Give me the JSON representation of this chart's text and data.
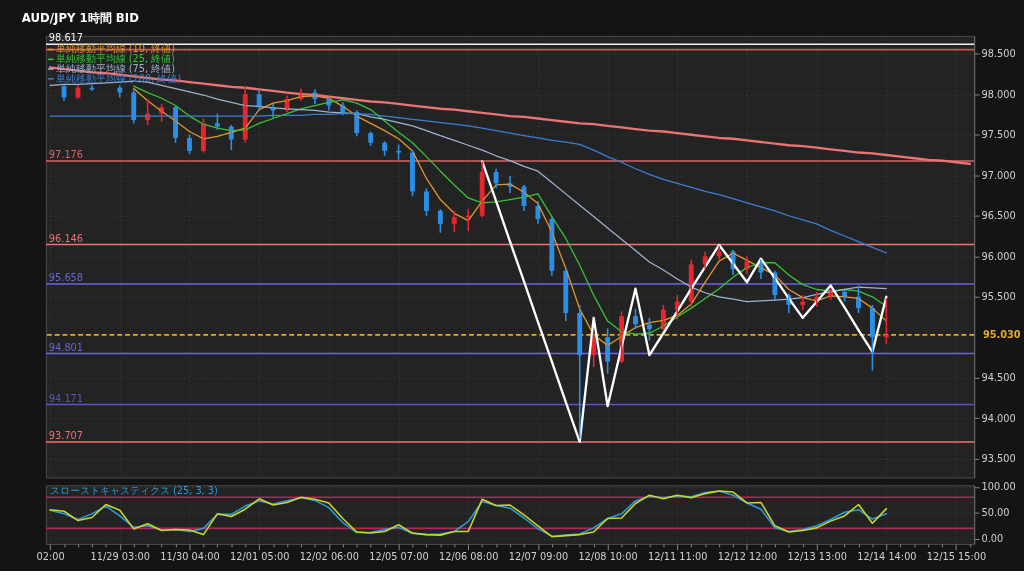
{
  "chart_data": [
    {
      "type": "candlestick",
      "title": "AUD/JPY 1時間 BID",
      "categories": [
        null,
        null,
        null,
        null,
        null,
        null,
        null,
        null,
        null,
        null,
        null,
        null,
        null,
        null,
        null,
        null,
        null,
        null,
        null,
        null,
        null,
        null,
        null,
        null,
        null,
        null,
        null,
        null,
        null,
        null,
        null,
        null,
        null,
        null,
        null,
        null,
        null,
        null,
        null,
        null,
        null,
        null,
        null,
        null,
        null,
        null,
        null,
        null,
        null,
        null,
        null,
        null,
        null,
        null,
        null,
        null,
        null,
        null,
        null,
        null,
        null,
        null,
        null,
        null,
        null,
        null,
        null
      ],
      "ohlc": [
        null,
        [
          98.1,
          98.11,
          97.92,
          97.96
        ],
        [
          97.96,
          98.11,
          97.94,
          98.08
        ],
        [
          98.08,
          98.11,
          98.04,
          98.06
        ],
        null,
        [
          98.08,
          98.11,
          97.96,
          98.02
        ],
        [
          98.02,
          98.06,
          97.64,
          97.68
        ],
        [
          97.68,
          97.94,
          97.62,
          97.76
        ],
        [
          97.76,
          97.88,
          97.66,
          97.84
        ],
        [
          97.84,
          97.86,
          97.4,
          97.46
        ],
        [
          97.46,
          97.5,
          97.26,
          97.3
        ],
        [
          97.3,
          97.7,
          97.28,
          97.64
        ],
        [
          97.64,
          97.76,
          97.56,
          97.6
        ],
        [
          97.6,
          97.62,
          97.31,
          97.44
        ],
        [
          97.44,
          98.1,
          97.4,
          98.0
        ],
        [
          98.0,
          98.06,
          97.8,
          97.84
        ],
        [
          97.84,
          97.88,
          97.7,
          97.8
        ],
        [
          97.8,
          97.98,
          97.78,
          97.94
        ],
        [
          97.94,
          98.07,
          97.92,
          98.02
        ],
        [
          98.02,
          98.06,
          97.88,
          97.94
        ],
        [
          97.94,
          97.96,
          97.8,
          97.86
        ],
        [
          97.86,
          97.9,
          97.74,
          97.78
        ],
        [
          97.78,
          97.8,
          97.48,
          97.52
        ],
        [
          97.52,
          97.54,
          97.36,
          97.4
        ],
        [
          97.4,
          97.42,
          97.24,
          97.3
        ],
        [
          97.3,
          97.38,
          97.19,
          97.28
        ],
        [
          97.28,
          97.3,
          96.74,
          96.8
        ],
        [
          96.8,
          96.84,
          96.5,
          96.56
        ],
        [
          96.56,
          96.58,
          96.29,
          96.4
        ],
        [
          96.4,
          96.56,
          96.3,
          96.48
        ],
        [
          96.48,
          96.58,
          96.31,
          96.5
        ],
        [
          96.5,
          97.17,
          96.48,
          97.04
        ],
        [
          97.04,
          97.08,
          96.84,
          96.9
        ],
        [
          96.9,
          96.99,
          96.78,
          96.86
        ],
        [
          96.86,
          96.88,
          96.56,
          96.62
        ],
        [
          96.62,
          96.68,
          96.4,
          96.46
        ],
        [
          96.46,
          96.48,
          95.76,
          95.82
        ],
        [
          95.82,
          95.86,
          95.2,
          95.3
        ],
        [
          95.3,
          95.4,
          93.75,
          94.78
        ],
        [
          94.78,
          95.06,
          94.63,
          95.0
        ],
        [
          95.0,
          95.11,
          94.55,
          94.7
        ],
        [
          94.7,
          95.32,
          94.68,
          95.26
        ],
        [
          95.26,
          95.35,
          95.1,
          95.16
        ],
        [
          95.16,
          95.24,
          94.96,
          95.1
        ],
        [
          95.1,
          95.4,
          95.08,
          95.34
        ],
        [
          95.34,
          95.52,
          95.22,
          95.44
        ],
        [
          95.44,
          95.96,
          95.38,
          95.9
        ],
        [
          95.9,
          96.06,
          95.84,
          96.0
        ],
        [
          96.0,
          96.13,
          95.96,
          96.06
        ],
        [
          96.06,
          96.08,
          95.77,
          95.84
        ],
        [
          95.84,
          96.0,
          95.78,
          95.94
        ],
        [
          95.94,
          95.96,
          95.72,
          95.8
        ],
        [
          95.8,
          95.82,
          95.46,
          95.52
        ],
        [
          95.52,
          95.54,
          95.3,
          95.4
        ],
        [
          95.4,
          95.52,
          95.34,
          95.44
        ],
        [
          95.44,
          95.56,
          95.38,
          95.5
        ],
        [
          95.5,
          95.6,
          95.46,
          95.56
        ],
        [
          95.56,
          95.58,
          95.44,
          95.5
        ],
        [
          95.5,
          95.64,
          95.3,
          95.36
        ],
        [
          95.36,
          95.4,
          94.59,
          95.0
        ],
        [
          95.0,
          95.48,
          94.92,
          95.03
        ],
        null,
        null,
        null,
        null,
        null,
        null
      ],
      "colors": [
        null,
        "#2b8fe6",
        "#e8262e",
        "#2b8fe6",
        null,
        "#2b8fe6",
        "#2b8fe6",
        "#e8262e",
        "#e8262e",
        "#2b8fe6",
        "#2b8fe6",
        "#e8262e",
        "#2b8fe6",
        "#2b8fe6",
        "#e8262e",
        "#2b8fe6",
        "#2b8fe6",
        "#e8262e",
        "#e8262e",
        "#2b8fe6",
        "#2b8fe6",
        "#2b8fe6",
        "#2b8fe6",
        "#2b8fe6",
        "#2b8fe6",
        "#2b8fe6",
        "#2b8fe6",
        "#2b8fe6",
        "#2b8fe6",
        "#e8262e",
        "#e8262e",
        "#e8262e",
        "#2b8fe6",
        "#2b8fe6",
        "#2b8fe6",
        "#2b8fe6",
        "#2b8fe6",
        "#2b8fe6",
        "#2b8fe6",
        "#e8262e",
        "#2b8fe6",
        "#e8262e",
        "#2b8fe6",
        "#2b8fe6",
        "#e8262e",
        "#e8262e",
        "#e8262e",
        "#e8262e",
        "#e8262e",
        "#2b8fe6",
        "#e8262e",
        "#2b8fe6",
        "#2b8fe6",
        "#2b8fe6",
        "#e8262e",
        "#e8262e",
        "#e8262e",
        "#2b8fe6",
        "#2b8fe6",
        "#2b8fe6",
        "#e8262e",
        null,
        null,
        null,
        null,
        null,
        null
      ],
      "series": [
        {
          "name": "単純移動平均線 (10, 終値)",
          "type": "line",
          "color": "#e0982c",
          "values": [
            null,
            null,
            null,
            null,
            null,
            null,
            98.07,
            97.92,
            97.79,
            97.67,
            97.54,
            97.45,
            97.48,
            97.53,
            97.58,
            97.81,
            97.89,
            97.92,
            97.97,
            97.98,
            97.95,
            97.85,
            97.73,
            97.64,
            97.55,
            97.45,
            97.3,
            96.96,
            96.7,
            96.53,
            96.44,
            96.68,
            96.88,
            96.89,
            96.79,
            96.65,
            96.3,
            95.85,
            95.35,
            95.03,
            94.9,
            95.01,
            95.12,
            95.18,
            95.21,
            95.27,
            95.41,
            95.68,
            95.94,
            96.04,
            95.95,
            95.86,
            95.77,
            95.59,
            95.49,
            95.45,
            95.51,
            95.5,
            95.48,
            95.36,
            95.2,
            null,
            null,
            null,
            null,
            null,
            null
          ]
        },
        {
          "name": "単純移動平均線 (25, 終値)",
          "type": "line",
          "color": "#35c435",
          "values": [
            null,
            null,
            null,
            null,
            null,
            null,
            98.1,
            98.02,
            97.95,
            97.86,
            97.73,
            97.63,
            97.58,
            97.55,
            97.56,
            97.64,
            97.7,
            97.76,
            97.82,
            97.86,
            97.9,
            97.93,
            97.89,
            97.81,
            97.67,
            97.53,
            97.4,
            97.23,
            97.05,
            96.88,
            96.72,
            96.66,
            96.67,
            96.7,
            96.73,
            96.77,
            96.49,
            96.22,
            95.89,
            95.52,
            95.2,
            95.07,
            95.04,
            95.05,
            95.14,
            95.25,
            95.36,
            95.48,
            95.6,
            95.74,
            95.86,
            95.92,
            95.92,
            95.77,
            95.65,
            95.59,
            95.57,
            95.59,
            95.57,
            95.5,
            95.38,
            null,
            null,
            null,
            null,
            null,
            null
          ]
        },
        {
          "name": "単純移動平均線 (75, 終値)",
          "type": "line",
          "color": "#9db3d0",
          "values": [
            98.11,
            98.12,
            98.12,
            98.13,
            98.14,
            98.15,
            98.16,
            98.15,
            98.11,
            98.07,
            98.03,
            97.99,
            97.94,
            97.9,
            97.86,
            97.85,
            97.83,
            97.82,
            97.81,
            97.8,
            97.78,
            97.77,
            97.76,
            97.72,
            97.69,
            97.65,
            97.61,
            97.55,
            97.49,
            97.43,
            97.37,
            97.31,
            97.24,
            97.18,
            97.11,
            97.05,
            96.91,
            96.77,
            96.63,
            96.49,
            96.35,
            96.21,
            96.07,
            95.93,
            95.83,
            95.72,
            95.62,
            95.55,
            95.5,
            95.47,
            95.44,
            95.45,
            95.46,
            95.47,
            95.49,
            95.53,
            95.56,
            95.59,
            95.62,
            95.61,
            95.6,
            null,
            null,
            null,
            null,
            null,
            null
          ]
        },
        {
          "name": "単純移動平均線 (200, 終値)",
          "type": "line",
          "color": "#3b7fd4",
          "values": [
            97.73,
            97.73,
            97.73,
            97.73,
            97.73,
            97.73,
            97.73,
            97.73,
            97.73,
            97.73,
            97.73,
            97.73,
            97.73,
            97.73,
            97.73,
            97.73,
            97.74,
            97.74,
            97.74,
            97.75,
            97.75,
            97.76,
            97.76,
            97.75,
            97.73,
            97.71,
            97.69,
            97.67,
            97.65,
            97.63,
            97.61,
            97.58,
            97.55,
            97.52,
            97.49,
            97.46,
            97.43,
            97.41,
            97.38,
            97.31,
            97.23,
            97.16,
            97.08,
            97.01,
            96.95,
            96.9,
            96.85,
            96.8,
            96.76,
            96.71,
            96.66,
            96.61,
            96.56,
            96.5,
            96.45,
            96.4,
            96.32,
            96.25,
            96.18,
            96.11,
            96.04,
            null,
            null,
            null,
            null,
            null,
            null
          ]
        },
        {
          "type": "line",
          "color": "#ea7474",
          "values": [
            98.33,
            98.31,
            98.29,
            98.27,
            98.26,
            98.24,
            98.22,
            98.2,
            98.18,
            98.17,
            98.15,
            98.13,
            98.11,
            98.09,
            98.08,
            98.06,
            98.04,
            98.02,
            98.0,
            97.99,
            97.97,
            97.95,
            97.93,
            97.91,
            97.9,
            97.88,
            97.86,
            97.84,
            97.82,
            97.81,
            97.79,
            97.77,
            97.75,
            97.73,
            97.72,
            97.7,
            97.68,
            97.66,
            97.64,
            97.63,
            97.61,
            97.59,
            97.57,
            97.55,
            97.54,
            97.52,
            97.5,
            97.48,
            97.46,
            97.45,
            97.43,
            97.41,
            97.39,
            97.37,
            97.36,
            97.34,
            97.32,
            97.3,
            97.28,
            97.27,
            97.25,
            97.23,
            97.21,
            97.19,
            97.18,
            97.16,
            97.14
          ]
        },
        {
          "type": "line",
          "color": "#ffffff",
          "values": [
            null,
            null,
            null,
            null,
            null,
            null,
            null,
            null,
            null,
            null,
            null,
            null,
            null,
            null,
            null,
            null,
            null,
            null,
            null,
            null,
            null,
            null,
            null,
            null,
            null,
            null,
            null,
            null,
            null,
            null,
            null,
            97.17,
            96.68,
            96.18,
            95.69,
            95.19,
            94.7,
            94.2,
            93.71,
            95.24,
            94.15,
            94.88,
            95.6,
            94.78,
            95.05,
            95.32,
            95.6,
            95.87,
            96.14,
            95.91,
            95.68,
            95.97,
            95.73,
            95.48,
            95.24,
            95.44,
            95.64,
            95.37,
            95.09,
            94.82,
            95.5,
            null,
            null,
            null,
            null,
            null,
            null
          ]
        }
      ],
      "ref_lines": [
        {
          "axis": "y",
          "value": 98.617,
          "label": "98.617",
          "color": "#f2f2f2"
        },
        {
          "axis": "y",
          "value": 98.55,
          "label": null,
          "color": "#c85a5a"
        },
        {
          "axis": "y",
          "value": 97.176,
          "label": "97.176",
          "color": "#d86464"
        },
        {
          "axis": "y",
          "value": 96.146,
          "label": "96.146",
          "color": "#f07070"
        },
        {
          "axis": "y",
          "value": 95.658,
          "label": "95.658",
          "color": "#6c64e2"
        },
        {
          "axis": "y",
          "value": 95.03,
          "label": "95.030",
          "color": "#e5ac1c",
          "line_style": "dashed"
        },
        {
          "axis": "y",
          "value": 94.801,
          "label": "94.801",
          "color": "#6c64e2"
        },
        {
          "axis": "y",
          "value": 94.171,
          "label": "94.171",
          "color": "#5a54c8"
        },
        {
          "axis": "y",
          "value": 93.707,
          "label": "93.707",
          "color": "#f07070"
        }
      ],
      "ylim": [
        93.27,
        98.72
      ],
      "yticks": [
        {
          "value": 93.5,
          "label": "93.500"
        },
        {
          "value": 94,
          "label": "94.000"
        },
        {
          "value": 94.5,
          "label": "94.500"
        },
        {
          "value": 95.5,
          "label": "95.500"
        },
        {
          "value": 96,
          "label": "96.000"
        },
        {
          "value": 96.5,
          "label": "96.500"
        },
        {
          "value": 97,
          "label": "97.000"
        },
        {
          "value": 97.5,
          "label": "97.500"
        },
        {
          "value": 98,
          "label": "98.000"
        },
        {
          "value": 98.5,
          "label": "98.500"
        }
      ],
      "legend": "top left",
      "grid": true,
      "tick_labels": "y"
    },
    {
      "type": "line",
      "title": "スローストキャスティクス (25, 3, 3)",
      "categories": [
        "02:00",
        null,
        null,
        null,
        null,
        "11/29 03:00",
        null,
        null,
        null,
        null,
        "11/30 04:00",
        null,
        null,
        null,
        null,
        "12/01 05:00",
        null,
        null,
        null,
        null,
        "12/02 06:00",
        null,
        null,
        null,
        null,
        "12/05 07:00",
        null,
        null,
        null,
        null,
        "12/06 08:00",
        null,
        null,
        null,
        null,
        "12/07 09:00",
        null,
        null,
        null,
        null,
        "12/08 10:00",
        null,
        null,
        null,
        null,
        "12/11 11:00",
        null,
        null,
        null,
        null,
        "12/12 12:00",
        null,
        null,
        null,
        null,
        "12/13 13:00",
        null,
        null,
        null,
        null,
        "12/14 14:00",
        null,
        null,
        null,
        null,
        "12/15 15:00",
        null
      ],
      "series": [
        {
          "color": "#2b9ad6",
          "values": [
            55,
            48,
            37,
            48,
            63,
            44,
            22,
            25,
            17,
            18,
            14,
            20,
            47,
            47,
            63,
            73,
            67,
            73,
            79,
            74,
            60,
            31,
            12,
            12,
            18,
            22,
            10,
            8,
            9,
            14,
            33,
            72,
            64,
            59,
            40,
            19,
            5,
            7,
            9,
            21,
            39,
            48,
            73,
            82,
            79,
            83,
            81,
            89,
            92,
            84,
            69,
            57,
            21,
            14,
            18,
            25,
            37,
            51,
            56,
            38,
            48,
            null,
            null,
            null,
            null,
            null,
            null
          ]
        },
        {
          "color": "#cad62a",
          "values": [
            56,
            53,
            35,
            41,
            66,
            55,
            19,
            29,
            16,
            18,
            17,
            8,
            48,
            43,
            57,
            77,
            65,
            70,
            80,
            76,
            69,
            39,
            13,
            11,
            14,
            27,
            11,
            8,
            7,
            14,
            14,
            76,
            64,
            65,
            46,
            25,
            4,
            6,
            8,
            13,
            39,
            40,
            68,
            84,
            77,
            84,
            79,
            87,
            92,
            90,
            69,
            70,
            25,
            13,
            16,
            21,
            34,
            44,
            66,
            30,
            58,
            null,
            null,
            null,
            null,
            null,
            null
          ]
        }
      ],
      "ref_lines": [
        {
          "axis": "y",
          "value": 80,
          "color": "#b8235a"
        },
        {
          "axis": "y",
          "value": 20,
          "color": "#b8235a"
        }
      ],
      "ylim": [
        -10,
        103
      ],
      "yticks": [
        {
          "value": 0,
          "label": "0.00"
        },
        {
          "value": 50,
          "label": "50.00"
        },
        {
          "value": 100,
          "label": "100.00"
        }
      ],
      "grid": true
    }
  ]
}
